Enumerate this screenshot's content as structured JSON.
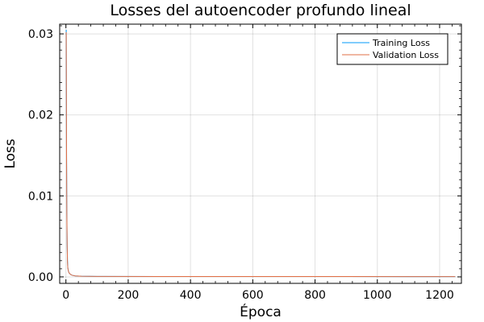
{
  "chart_data": {
    "type": "line",
    "title": "Losses del autoencoder profundo lineal",
    "xlabel": "Época",
    "ylabel": "Loss",
    "xlim": [
      -20,
      1270
    ],
    "ylim": [
      -0.0008,
      0.0312
    ],
    "xticks": [
      0,
      200,
      400,
      600,
      800,
      1000,
      1200
    ],
    "xtick_labels": [
      "0",
      "200",
      "400",
      "600",
      "800",
      "1000",
      "1200"
    ],
    "yticks": [
      0.0,
      0.01,
      0.02,
      0.03
    ],
    "ytick_labels": [
      "0.00",
      "0.01",
      "0.02",
      "0.03"
    ],
    "grid": true,
    "legend_position": "top-right",
    "series": [
      {
        "name": "Training Loss",
        "color": "#009AFA",
        "x": [
          1,
          2,
          3,
          4,
          5,
          6,
          8,
          10,
          15,
          20,
          30,
          50,
          100,
          300,
          600,
          900,
          1250
        ],
        "y": [
          0.0305,
          0.016,
          0.008,
          0.004,
          0.002,
          0.0012,
          0.0007,
          0.0005,
          0.0003,
          0.0002,
          0.00012,
          8e-05,
          6e-05,
          5e-05,
          4e-05,
          4e-05,
          3e-05
        ]
      },
      {
        "name": "Validation Loss",
        "color": "#E26F46",
        "x": [
          1,
          2,
          3,
          4,
          5,
          6,
          8,
          10,
          15,
          20,
          30,
          50,
          100,
          300,
          600,
          900,
          1250
        ],
        "y": [
          0.0302,
          0.015,
          0.0075,
          0.0038,
          0.0019,
          0.0011,
          0.0007,
          0.0005,
          0.0003,
          0.0002,
          0.00012,
          8e-05,
          6e-05,
          5e-05,
          4e-05,
          4e-05,
          3e-05
        ]
      }
    ]
  }
}
